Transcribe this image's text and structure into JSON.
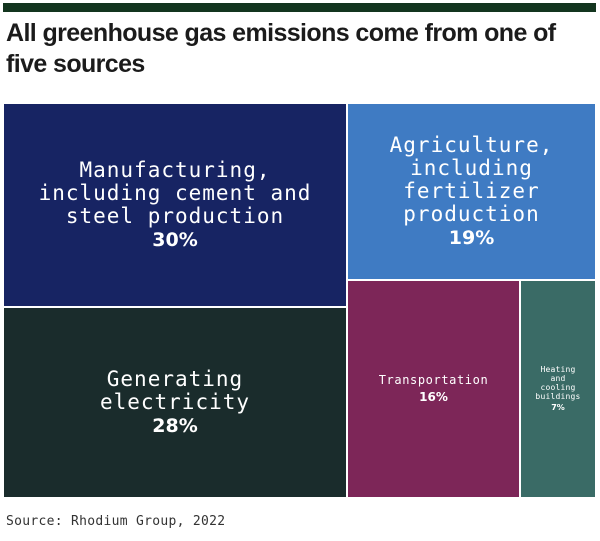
{
  "header": {
    "title": "All greenhouse gas emissions come from one of five sources"
  },
  "chart_data": {
    "type": "treemap",
    "items": [
      {
        "label": "Manufacturing,\nincluding cement and\nsteel production",
        "value_label": "30%",
        "value": 30,
        "color": "#172463"
      },
      {
        "label": "Generating\nelectricity",
        "value_label": "28%",
        "value": 28,
        "color": "#1a2c2c"
      },
      {
        "label": "Agriculture,\nincluding\nfertilizer\nproduction",
        "value_label": "19%",
        "value": 19,
        "color": "#3f7bc3"
      },
      {
        "label": "Transportation",
        "value_label": "16%",
        "value": 16,
        "color": "#7d2658"
      },
      {
        "label": "Heating\nand\ncooling\nbuildings",
        "value_label": "7%",
        "value": 7,
        "color": "#3a6b66"
      }
    ]
  },
  "footer": {
    "source": "Source: Rhodium Group, 2022"
  }
}
